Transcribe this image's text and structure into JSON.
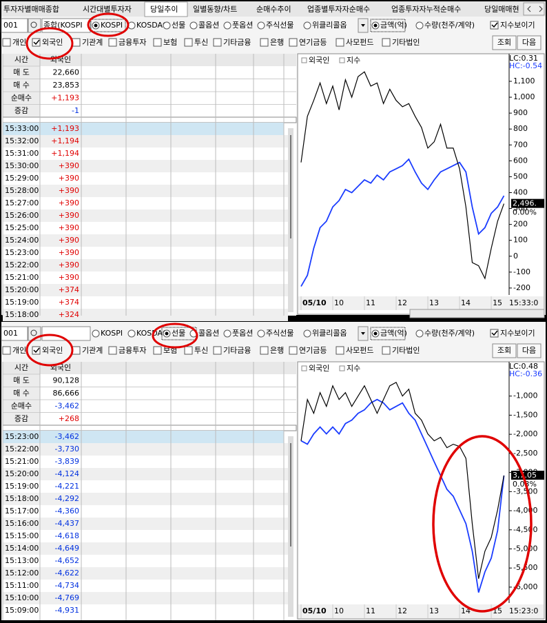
{
  "tabs": [
    "투자자별매매종합",
    "시간대별투자자",
    "당일추이",
    "일별동향/차트",
    "순매수추이",
    "업종별투자자순매수",
    "업종투자자누적순매수",
    "당일매매현"
  ],
  "selected_tab": 2,
  "panels": [
    {
      "code": "001",
      "market_text": "종합(KOSPI",
      "markets": [
        "KOSPI",
        "KOSDAQ",
        "선물",
        "콜옵션",
        "풋옵션",
        "주식선물",
        "위클리콜옵"
      ],
      "selected_market": 0,
      "units": [
        "금액(억)",
        "수량(천주/계약)"
      ],
      "selected_unit": 0,
      "show_index": "지수보이기",
      "investors": [
        "개인",
        "외국인",
        "기관계",
        "금융투자",
        "보험",
        "투신",
        "기타금융",
        "은행",
        "연기금등",
        "사모펀드",
        "기타법인"
      ],
      "checked_investor": 1,
      "buttons": [
        "조회",
        "다음"
      ],
      "table": {
        "headers": [
          "시간",
          "외국인"
        ],
        "summary": [
          [
            "매 도",
            "22,660"
          ],
          [
            "매 수",
            "23,853"
          ],
          [
            "순매수",
            "+1,193"
          ],
          [
            "증감",
            "-1"
          ]
        ],
        "rows": [
          [
            "15:33:00",
            "+1,193"
          ],
          [
            "15:32:00",
            "+1,194"
          ],
          [
            "15:31:00",
            "+1,194"
          ],
          [
            "15:30:00",
            "+390"
          ],
          [
            "15:29:00",
            "+390"
          ],
          [
            "15:28:00",
            "+390"
          ],
          [
            "15:27:00",
            "+390"
          ],
          [
            "15:26:00",
            "+390"
          ],
          [
            "15:25:00",
            "+390"
          ],
          [
            "15:24:00",
            "+390"
          ],
          [
            "15:23:00",
            "+390"
          ],
          [
            "15:22:00",
            "+390"
          ],
          [
            "15:21:00",
            "+390"
          ],
          [
            "15:20:00",
            "+374"
          ],
          [
            "15:19:00",
            "+374"
          ],
          [
            "15:18:00",
            "+324"
          ]
        ],
        "highlighted_row": 0
      },
      "chart": {
        "type": "line",
        "x": [
          9,
          9.2,
          9.4,
          9.6,
          9.8,
          10,
          10.2,
          10.4,
          10.6,
          10.8,
          11,
          11.2,
          11.4,
          11.6,
          11.8,
          12,
          12.2,
          12.4,
          12.6,
          12.8,
          13,
          13.2,
          13.4,
          13.6,
          13.8,
          14,
          14.2,
          14.4,
          14.6,
          14.8,
          15,
          15.2,
          15.4
        ],
        "series": [
          {
            "name": "외국인",
            "color": "#1a3cff",
            "values": [
              -190,
              -120,
              50,
              180,
              220,
              310,
              350,
              420,
              400,
              440,
              480,
              460,
              510,
              480,
              530,
              550,
              570,
              610,
              530,
              460,
              420,
              480,
              530,
              550,
              570,
              590,
              530,
              310,
              140,
              180,
              270,
              310,
              380
            ]
          },
          {
            "name": "지수",
            "color": "#000000",
            "values": [
              590,
              880,
              980,
              1090,
              960,
              1070,
              920,
              1110,
              1000,
              1130,
              1160,
              1070,
              1090,
              960,
              1050,
              980,
              940,
              960,
              880,
              810,
              680,
              720,
              830,
              680,
              680,
              550,
              310,
              -40,
              -60,
              -140,
              50,
              220,
              330
            ]
          }
        ],
        "xlim": [
          9,
          15.52
        ],
        "xticks": [
          {
            "value": 9,
            "label": "05/10"
          },
          10,
          11,
          12,
          13,
          14,
          15
        ],
        "ylim": [
          -235,
          1178
        ],
        "yticks": [
          {
            "value": 1100,
            "label": "1,100"
          },
          {
            "value": 1000,
            "label": "1,000"
          },
          900,
          800,
          700,
          600,
          500,
          400,
          300,
          200,
          100,
          0,
          -100,
          -200
        ],
        "corner_labels": [
          "LC:0.31",
          "HC:-0.54"
        ],
        "end_labels": [
          "2,496.",
          "0.00%"
        ],
        "time_label": "15:33:0"
      }
    },
    {
      "code": "001",
      "market_text": "",
      "markets": [
        "KOSPI",
        "KOSDAQ",
        "선물",
        "콜옵션",
        "풋옵션",
        "주식선물",
        "위클리콜옵"
      ],
      "selected_market": 2,
      "units": [
        "금액(억)",
        "수량(천주/계약)"
      ],
      "selected_unit": 0,
      "show_index": "지수보이기",
      "investors": [
        "개인",
        "외국인",
        "기관계",
        "금융투자",
        "보험",
        "투신",
        "기타금융",
        "은행",
        "연기금등",
        "사모펀드",
        "기타법인"
      ],
      "checked_investor": 1,
      "buttons": [
        "조회",
        "다음"
      ],
      "table": {
        "headers": [
          "시간",
          "외국인"
        ],
        "summary": [
          [
            "매 도",
            "90,128"
          ],
          [
            "매 수",
            "86,666"
          ],
          [
            "순매수",
            "-3,462"
          ],
          [
            "증감",
            "+268"
          ]
        ],
        "rows": [
          [
            "15:23:00",
            "-3,462"
          ],
          [
            "15:22:00",
            "-3,730"
          ],
          [
            "15:21:00",
            "-3,839"
          ],
          [
            "15:20:00",
            "-4,124"
          ],
          [
            "15:19:00",
            "-4,221"
          ],
          [
            "15:18:00",
            "-4,292"
          ],
          [
            "15:17:00",
            "-4,360"
          ],
          [
            "15:16:00",
            "-4,437"
          ],
          [
            "15:15:00",
            "-4,618"
          ],
          [
            "15:14:00",
            "-4,649"
          ],
          [
            "15:13:00",
            "-4,652"
          ],
          [
            "15:12:00",
            "-4,622"
          ],
          [
            "15:11:00",
            "-4,734"
          ],
          [
            "15:10:00",
            "-4,769"
          ],
          [
            "15:09:00",
            "-4,931"
          ]
        ],
        "highlighted_row": 0
      },
      "chart": {
        "type": "line",
        "x": [
          9,
          9.2,
          9.4,
          9.6,
          9.8,
          10,
          10.2,
          10.4,
          10.6,
          10.8,
          11,
          11.2,
          11.4,
          11.6,
          11.8,
          12,
          12.2,
          12.4,
          12.6,
          12.8,
          13,
          13.2,
          13.4,
          13.6,
          13.8,
          14,
          14.2,
          14.4,
          14.6,
          14.8,
          15,
          15.2,
          15.4
        ],
        "series": [
          {
            "name": "외국인",
            "color": "#1a3cff",
            "values": [
              -2170,
              -2260,
              -1990,
              -1810,
              -1990,
              -1810,
              -1990,
              -1720,
              -1630,
              -1450,
              -1360,
              -1180,
              -1090,
              -1180,
              -1360,
              -1270,
              -1180,
              -1450,
              -1630,
              -1990,
              -2350,
              -2720,
              -3080,
              -3440,
              -3620,
              -3980,
              -4340,
              -5060,
              -6140,
              -5600,
              -5240,
              -4520,
              -3080
            ]
          },
          {
            "name": "지수",
            "color": "#000000",
            "values": [
              -2170,
              -1090,
              -1450,
              -910,
              -1270,
              -730,
              -1090,
              -910,
              -1270,
              -1000,
              -730,
              -1090,
              -1450,
              -1090,
              -730,
              -640,
              -1000,
              -820,
              -1450,
              -1630,
              -1990,
              -2170,
              -2080,
              -2350,
              -2260,
              -2320,
              -2630,
              -4340,
              -5780,
              -5060,
              -4700,
              -3980,
              -3080
            ]
          }
        ],
        "xlim": [
          9,
          15.52
        ],
        "xticks": [
          {
            "value": 9,
            "label": "05/10"
          },
          10,
          11,
          12,
          13,
          14,
          15
        ],
        "ylim": [
          -6380,
          -500
        ],
        "yticks": [
          {
            "value": -1000,
            "label": "-1,000"
          },
          {
            "value": -1500,
            "label": "-1,500"
          },
          {
            "value": -2000,
            "label": "-2,000"
          },
          {
            "value": -2500,
            "label": "-2,500"
          },
          {
            "value": -3000,
            "label": "-3,000"
          },
          {
            "value": -3500,
            "label": "-3,500"
          },
          {
            "value": -4000,
            "label": "-4,000"
          },
          {
            "value": -4500,
            "label": "-4,500"
          },
          {
            "value": -5000,
            "label": "-5,000"
          },
          {
            "value": -5500,
            "label": "-5,500"
          },
          {
            "value": -6000,
            "label": "-6,000"
          }
        ],
        "corner_labels": [
          "LC:0.48",
          "HC:-0.36"
        ],
        "end_labels": [
          "3,7.05",
          "0.03%"
        ],
        "time_label": "15:23:0"
      }
    }
  ]
}
